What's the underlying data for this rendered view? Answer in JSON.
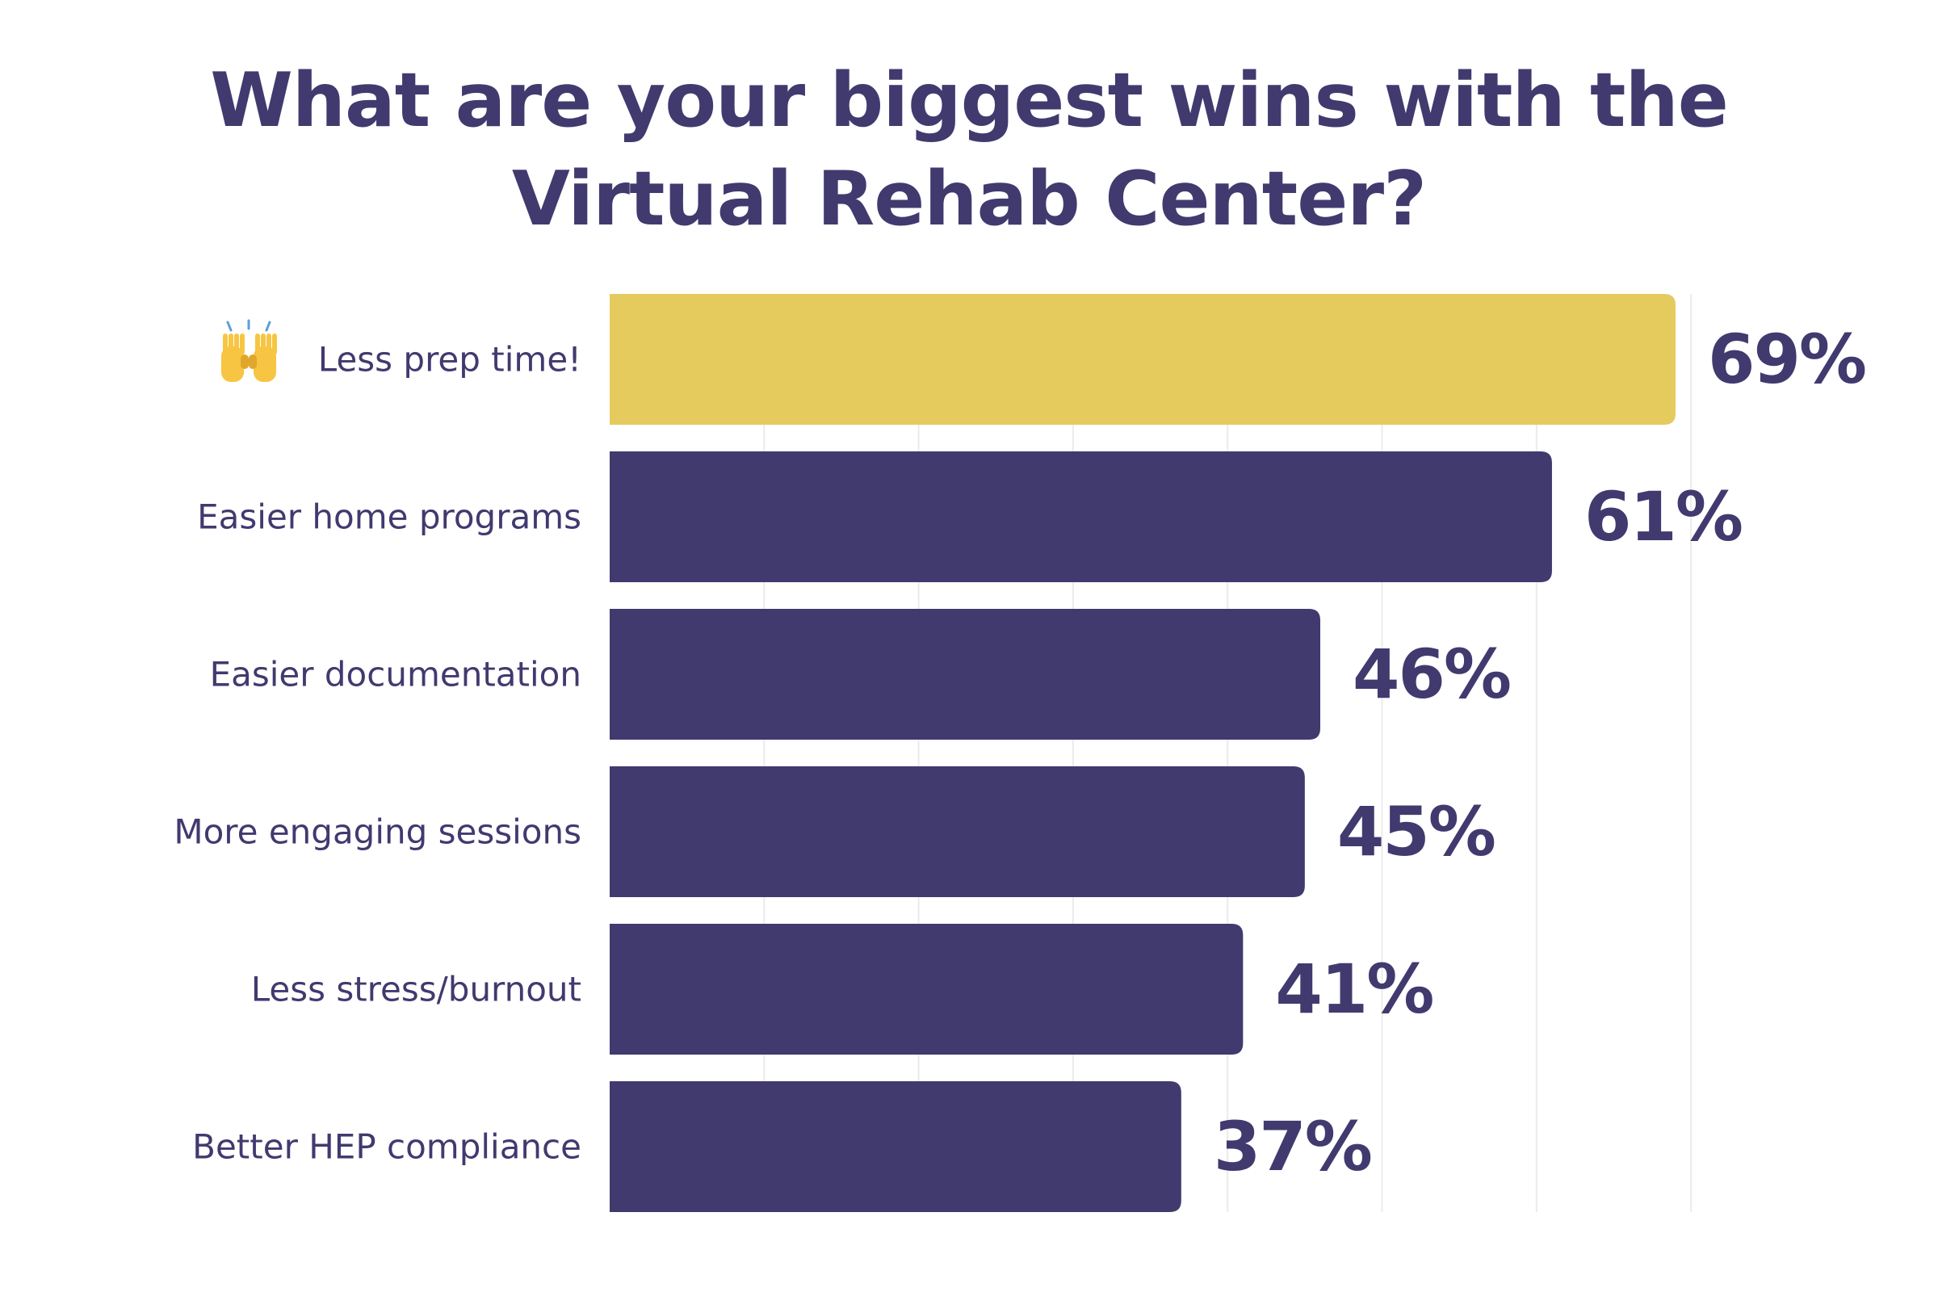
{
  "chart_data": {
    "type": "bar",
    "orientation": "horizontal",
    "title_lines": [
      "What are your biggest wins with the",
      "Virtual Rehab Center?"
    ],
    "categories": [
      "Less prep time!",
      "Easier home programs",
      "Easier documentation",
      "More engaging sessions",
      "Less stress/burnout",
      "Better HEP compliance"
    ],
    "values": [
      69,
      61,
      46,
      45,
      41,
      37
    ],
    "value_labels": [
      "69%",
      "61%",
      "46%",
      "45%",
      "41%",
      "37%"
    ],
    "highlight_index": 0,
    "highlight_icon": "raising-hands-icon",
    "xlim": [
      0,
      70
    ],
    "grid": true,
    "colors": {
      "highlight": "#e5ca5d",
      "bar": "#413a6f",
      "text": "#413a6f",
      "grid": "#ebebeb"
    }
  }
}
